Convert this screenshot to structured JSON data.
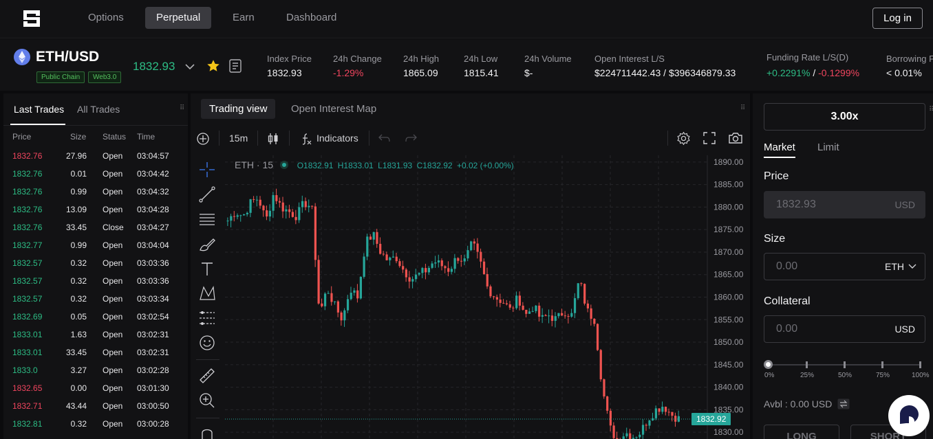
{
  "nav": {
    "items": [
      {
        "label": "Options",
        "active": false
      },
      {
        "label": "Perpetual",
        "active": true
      },
      {
        "label": "Earn",
        "active": false
      },
      {
        "label": "Dashboard",
        "active": false
      }
    ],
    "login_label": "Log in",
    "logo_icon": "logo-icon"
  },
  "ticker": {
    "pair": "ETH/USD",
    "coin_icon": "ethereum-icon",
    "tags": [
      "Public Chain",
      "Web3.0"
    ],
    "last_price": "1832.93",
    "stats": [
      {
        "label": "Index Price",
        "value": "1832.93",
        "color": "default"
      },
      {
        "label": "24h Change",
        "value": "-1.29%",
        "color": "red"
      },
      {
        "label": "24h High",
        "value": "1865.09",
        "color": "default"
      },
      {
        "label": "24h Low",
        "value": "1815.41",
        "color": "default"
      },
      {
        "label": "24h Volume",
        "value": "$-",
        "color": "default"
      },
      {
        "label": "Open Interest L/S",
        "value": "$224711442.43 / $396346879.33",
        "color": "default"
      }
    ],
    "funding": {
      "label": "Funding Rate L/S(D)",
      "long": "+0.2291%",
      "sep": " / ",
      "short": "-0.1299%"
    },
    "borrowing": {
      "label": "Borrowing F",
      "value": "< 0.01%"
    }
  },
  "trades": {
    "tabs": [
      {
        "label": "Last Trades",
        "active": true
      },
      {
        "label": "All Trades",
        "active": false
      }
    ],
    "columns": [
      "Price",
      "Size",
      "Status",
      "Time"
    ],
    "rows": [
      {
        "price": "1832.76",
        "size": "27.96",
        "status": "Open",
        "time": "03:04:57",
        "side": "sell"
      },
      {
        "price": "1832.76",
        "size": "0.01",
        "status": "Open",
        "time": "03:04:42",
        "side": "buy"
      },
      {
        "price": "1832.76",
        "size": "0.99",
        "status": "Open",
        "time": "03:04:32",
        "side": "buy"
      },
      {
        "price": "1832.76",
        "size": "13.09",
        "status": "Open",
        "time": "03:04:28",
        "side": "buy"
      },
      {
        "price": "1832.76",
        "size": "33.45",
        "status": "Close",
        "time": "03:04:27",
        "side": "buy"
      },
      {
        "price": "1832.77",
        "size": "0.99",
        "status": "Open",
        "time": "03:04:04",
        "side": "buy"
      },
      {
        "price": "1832.57",
        "size": "0.32",
        "status": "Open",
        "time": "03:03:36",
        "side": "buy"
      },
      {
        "price": "1832.57",
        "size": "0.32",
        "status": "Open",
        "time": "03:03:36",
        "side": "buy"
      },
      {
        "price": "1832.57",
        "size": "0.32",
        "status": "Open",
        "time": "03:03:34",
        "side": "buy"
      },
      {
        "price": "1832.69",
        "size": "0.05",
        "status": "Open",
        "time": "03:02:54",
        "side": "buy"
      },
      {
        "price": "1833.01",
        "size": "1.63",
        "status": "Open",
        "time": "03:02:31",
        "side": "buy"
      },
      {
        "price": "1833.01",
        "size": "33.45",
        "status": "Open",
        "time": "03:02:31",
        "side": "buy"
      },
      {
        "price": "1833.0",
        "size": "3.27",
        "status": "Open",
        "time": "03:02:28",
        "side": "buy"
      },
      {
        "price": "1832.65",
        "size": "0.00",
        "status": "Open",
        "time": "03:01:30",
        "side": "sell"
      },
      {
        "price": "1832.71",
        "size": "43.44",
        "status": "Open",
        "time": "03:00:50",
        "side": "sell"
      },
      {
        "price": "1832.81",
        "size": "0.32",
        "status": "Open",
        "time": "03:00:28",
        "side": "buy"
      }
    ]
  },
  "chart": {
    "tabs": [
      {
        "label": "Trading view",
        "active": true
      },
      {
        "label": "Open Interest Map",
        "active": false
      }
    ],
    "toolbar": {
      "interval": "15m",
      "indicators": "Indicators"
    },
    "legend": {
      "symbol": "ETH · 15",
      "open": "O1832.91",
      "high": "H1833.01",
      "low": "L1831.93",
      "close": "C1832.92",
      "change": "+0.02 (+0.00%)"
    },
    "last_price_label": "1832.92",
    "colors": {
      "up": "#26a69a",
      "down": "#ef5350",
      "bg": "#121214"
    }
  },
  "chart_data": {
    "type": "candlestick",
    "interval": "15m",
    "symbol": "ETH",
    "y_ticks": [
      "1890.00",
      "1885.00",
      "1880.00",
      "1875.00",
      "1870.00",
      "1865.00",
      "1860.00",
      "1855.00",
      "1850.00",
      "1845.00",
      "1840.00",
      "1835.00",
      "1830.00"
    ],
    "ylim": [
      1828.5,
      1891.5
    ],
    "last_price": 1832.92,
    "close_path": [
      1877,
      1879,
      1878,
      1881,
      1882,
      1877,
      1883,
      1880,
      1879,
      1878,
      1881,
      1880,
      1856,
      1862,
      1858,
      1855,
      1862,
      1860,
      1872,
      1874,
      1870,
      1868,
      1869,
      1866,
      1864,
      1865,
      1866,
      1868,
      1867,
      1866,
      1869,
      1868,
      1872,
      1868,
      1862,
      1860,
      1859,
      1857,
      1860,
      1856,
      1858,
      1855,
      1856,
      1855,
      1857,
      1856,
      1864,
      1857,
      1855,
      1840,
      1831,
      1828,
      1830,
      1829,
      1830,
      1833,
      1835,
      1836,
      1834,
      1833
    ]
  },
  "order": {
    "leverage": "3.00x",
    "tabs": [
      {
        "label": "Market",
        "active": true
      },
      {
        "label": "Limit",
        "active": false
      }
    ],
    "price": {
      "label": "Price",
      "value": "1832.93",
      "unit": "USD"
    },
    "size": {
      "label": "Size",
      "placeholder": "0.00",
      "unit": "ETH"
    },
    "collateral": {
      "label": "Collateral",
      "placeholder": "0.00",
      "unit": "USD"
    },
    "slider": {
      "value": 0,
      "marks": [
        "0%",
        "25%",
        "50%",
        "75%",
        "100%"
      ]
    },
    "available": "Avbl : 0.00 USD",
    "long_label": "LONG",
    "short_label": "SHORT"
  }
}
